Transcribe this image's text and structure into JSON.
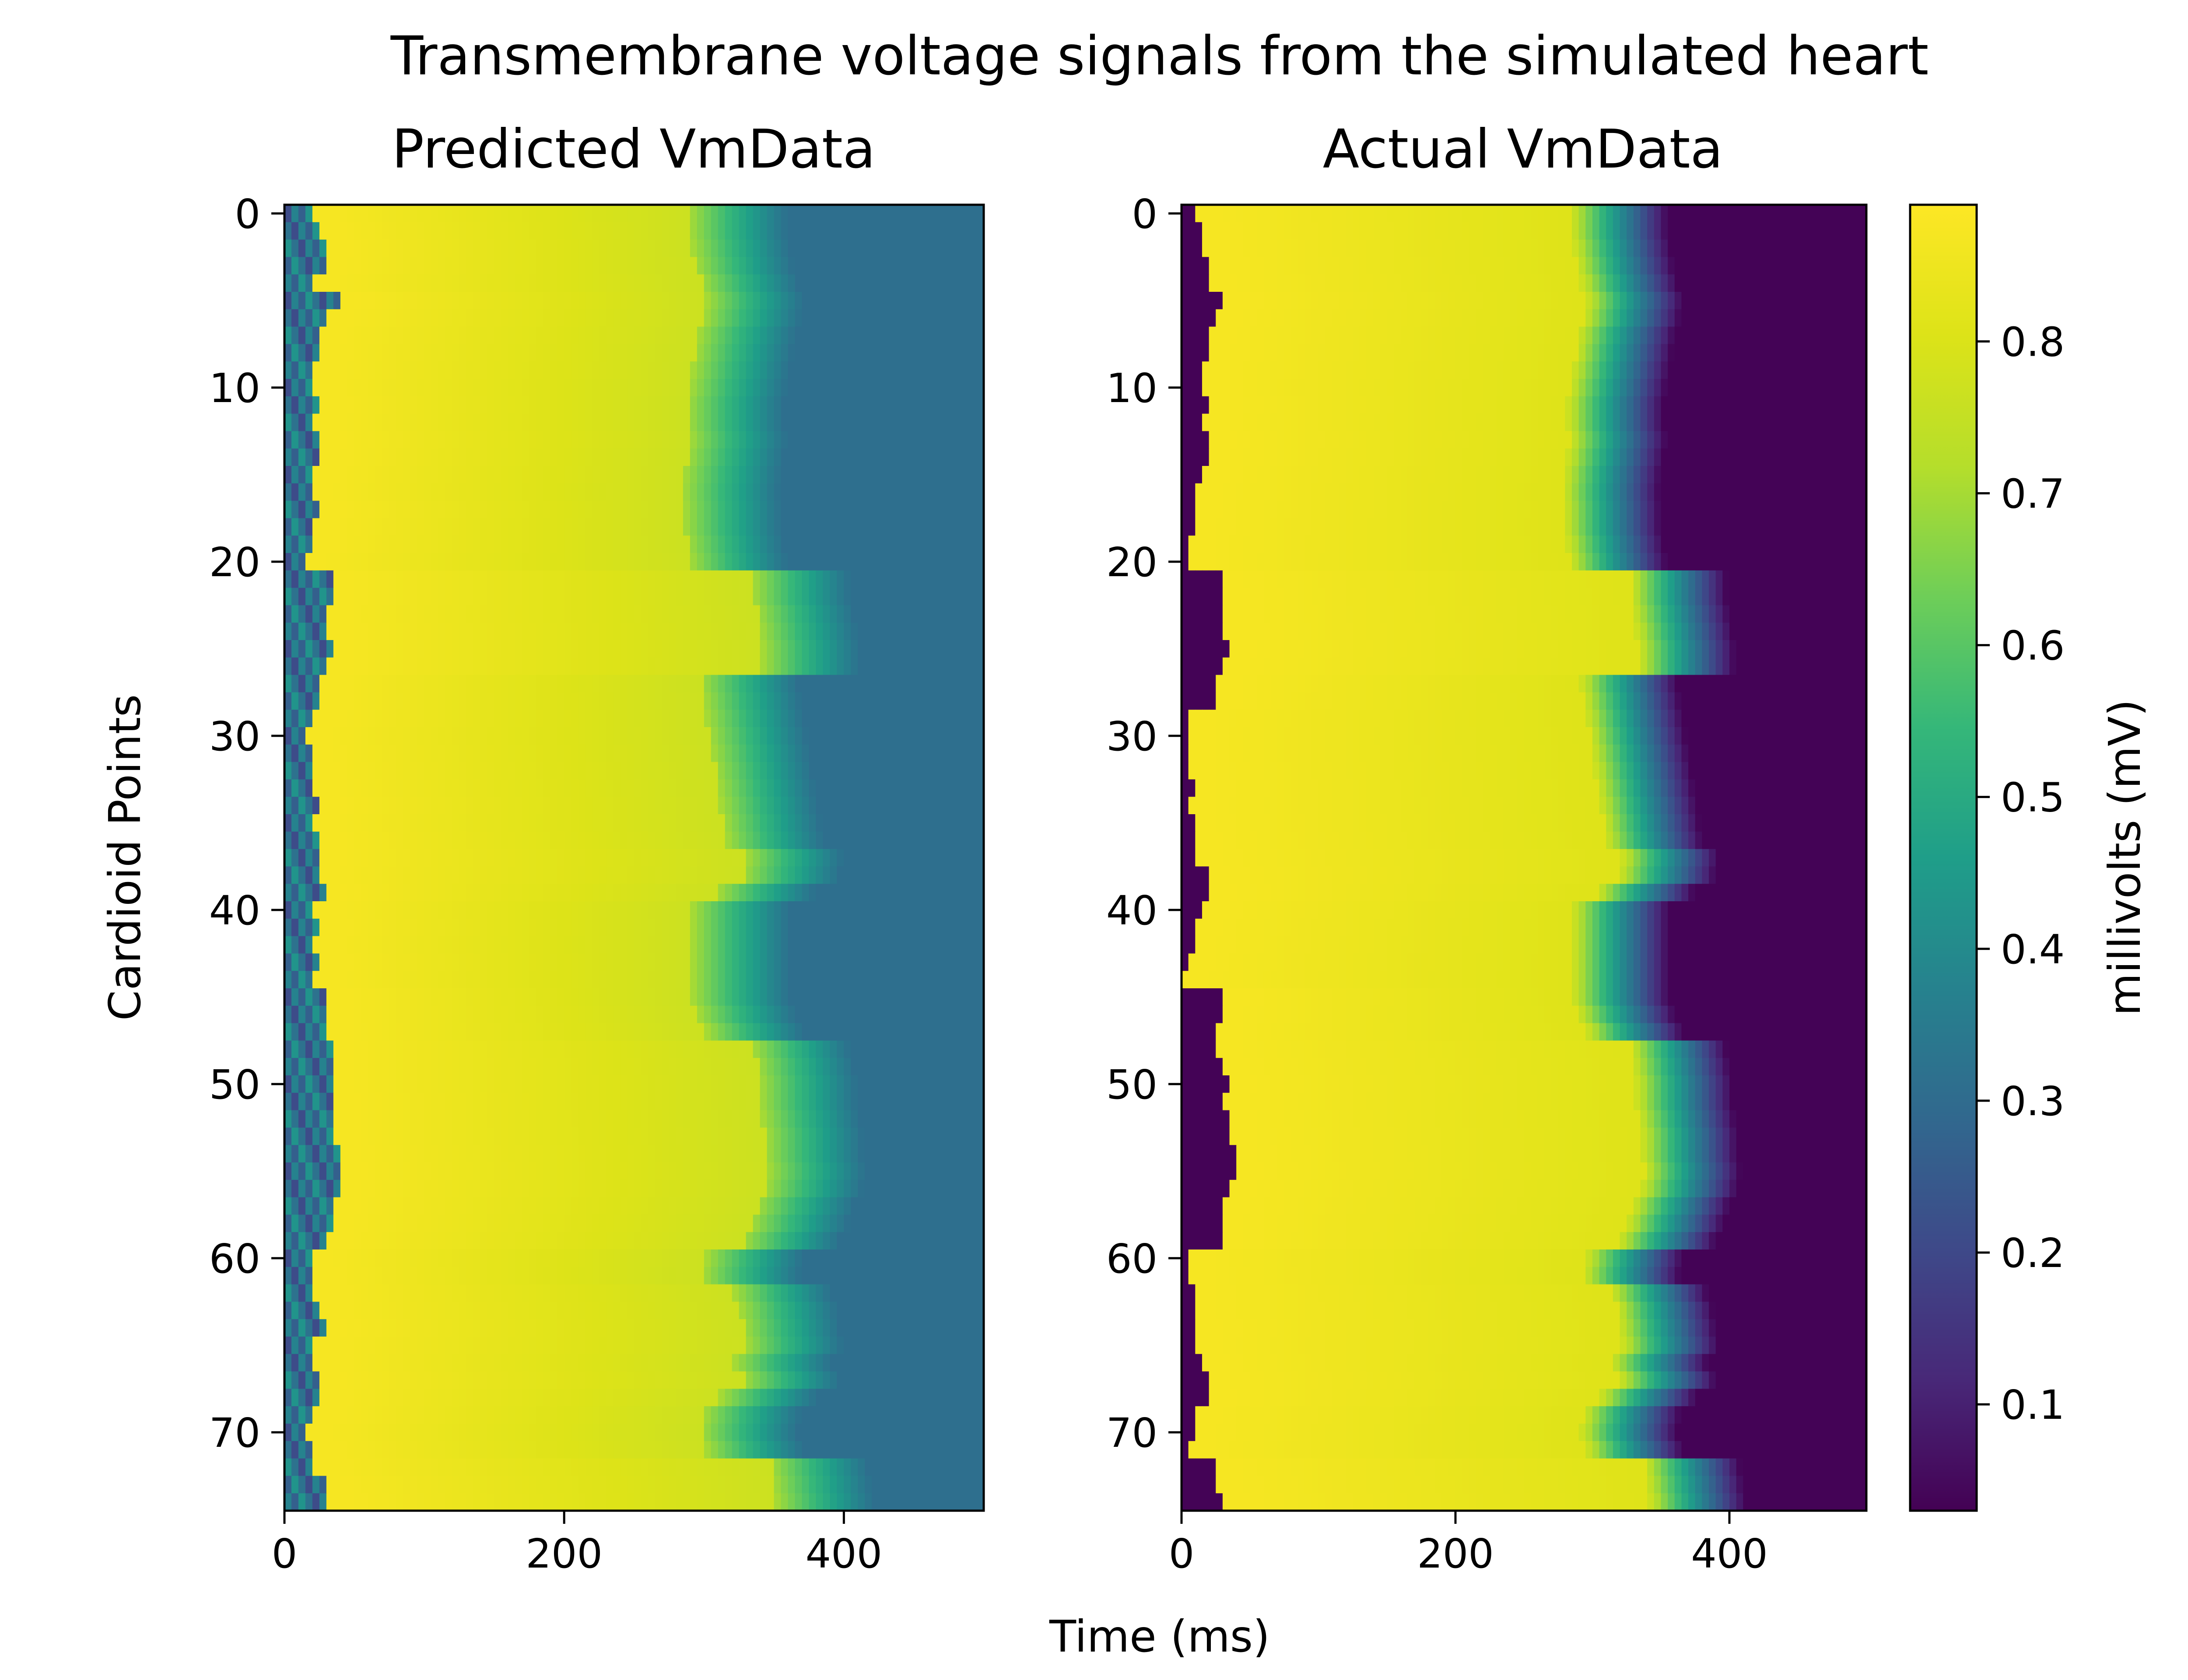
{
  "chart_data": {
    "type": "heatmap",
    "title": "Transmembrane voltage signals from the simulated heart",
    "xlabel": "Time (ms)",
    "ylabel": "Cardioid Points",
    "grid": false,
    "x_range": [
      0,
      500
    ],
    "y_range": [
      0,
      75
    ],
    "x_ticks": [
      0,
      200,
      400
    ],
    "y_ticks": [
      0,
      10,
      20,
      30,
      40,
      50,
      60,
      70
    ],
    "colormap": "viridis",
    "colorbar": {
      "label": "millivolts (mV)",
      "range": [
        0.03,
        0.89
      ],
      "ticks": [
        0.1,
        0.2,
        0.3,
        0.4,
        0.5,
        0.6,
        0.7,
        0.8
      ],
      "tick_labels": [
        "0.1",
        "0.2",
        "0.3",
        "0.4",
        "0.5",
        "0.6",
        "0.7",
        "0.8"
      ]
    },
    "panels": [
      {
        "title": "Predicted VmData",
        "baseline": 0.31,
        "plateau": 0.78,
        "activation_jitter": 0.22,
        "peak": 0.87,
        "upstroke_ms": [
          20,
          25,
          30,
          28,
          22,
          38,
          32,
          26,
          24,
          22,
          20,
          24,
          22,
          26,
          24,
          20,
          18,
          26,
          22,
          20,
          14,
          34,
          34,
          30,
          32,
          34,
          32,
          24,
          24,
          22,
          16,
          18,
          20,
          22,
          26,
          22,
          26,
          26,
          24,
          28,
          22,
          24,
          20,
          24,
          22,
          32,
          32,
          32,
          34,
          34,
          34,
          36,
          36,
          36,
          38,
          40,
          38,
          36,
          34,
          30,
          18,
          20,
          22,
          24,
          28,
          22,
          22,
          26,
          24,
          22,
          16,
          20,
          22,
          30,
          32
        ],
        "repol_ms": [
          360,
          360,
          362,
          364,
          368,
          372,
          370,
          366,
          364,
          362,
          360,
          358,
          358,
          360,
          358,
          356,
          355,
          356,
          356,
          358,
          360,
          405,
          405,
          408,
          410,
          412,
          412,
          368,
          370,
          372,
          374,
          376,
          378,
          380,
          382,
          384,
          386,
          400,
          398,
          380,
          362,
          362,
          362,
          362,
          362,
          362,
          366,
          372,
          405,
          408,
          410,
          410,
          412,
          414,
          414,
          416,
          414,
          408,
          404,
          398,
          372,
          370,
          392,
          396,
          398,
          400,
          392,
          398,
          382,
          370,
          368,
          372,
          418,
          420,
          422
        ]
      },
      {
        "title": "Actual VmData",
        "baseline": 0.035,
        "plateau": 0.85,
        "activation_jitter": 0.0,
        "peak": 0.87,
        "upstroke_ms": [
          12,
          14,
          16,
          18,
          20,
          30,
          24,
          20,
          18,
          16,
          14,
          18,
          16,
          20,
          18,
          14,
          12,
          10,
          8,
          6,
          4,
          28,
          30,
          30,
          32,
          34,
          30,
          26,
          24,
          6,
          4,
          4,
          6,
          8,
          6,
          8,
          10,
          12,
          18,
          22,
          14,
          10,
          8,
          4,
          2,
          32,
          28,
          24,
          26,
          30,
          34,
          32,
          34,
          36,
          38,
          40,
          34,
          30,
          28,
          28,
          4,
          6,
          8,
          8,
          12,
          10,
          14,
          18,
          20,
          10,
          8,
          4,
          24,
          26,
          30
        ],
        "repol_ms": [
          355,
          355,
          357,
          359,
          362,
          366,
          364,
          360,
          358,
          356,
          354,
          352,
          352,
          354,
          352,
          350,
          349,
          350,
          350,
          352,
          354,
          398,
          398,
          400,
          402,
          404,
          404,
          362,
          364,
          366,
          368,
          370,
          372,
          374,
          376,
          378,
          380,
          392,
          390,
          374,
          356,
          356,
          356,
          356,
          356,
          356,
          360,
          366,
          398,
          400,
          402,
          402,
          404,
          406,
          406,
          408,
          406,
          400,
          396,
          390,
          366,
          364,
          384,
          388,
          390,
          392,
          384,
          390,
          376,
          364,
          362,
          366,
          408,
          410,
          412
        ]
      }
    ]
  }
}
